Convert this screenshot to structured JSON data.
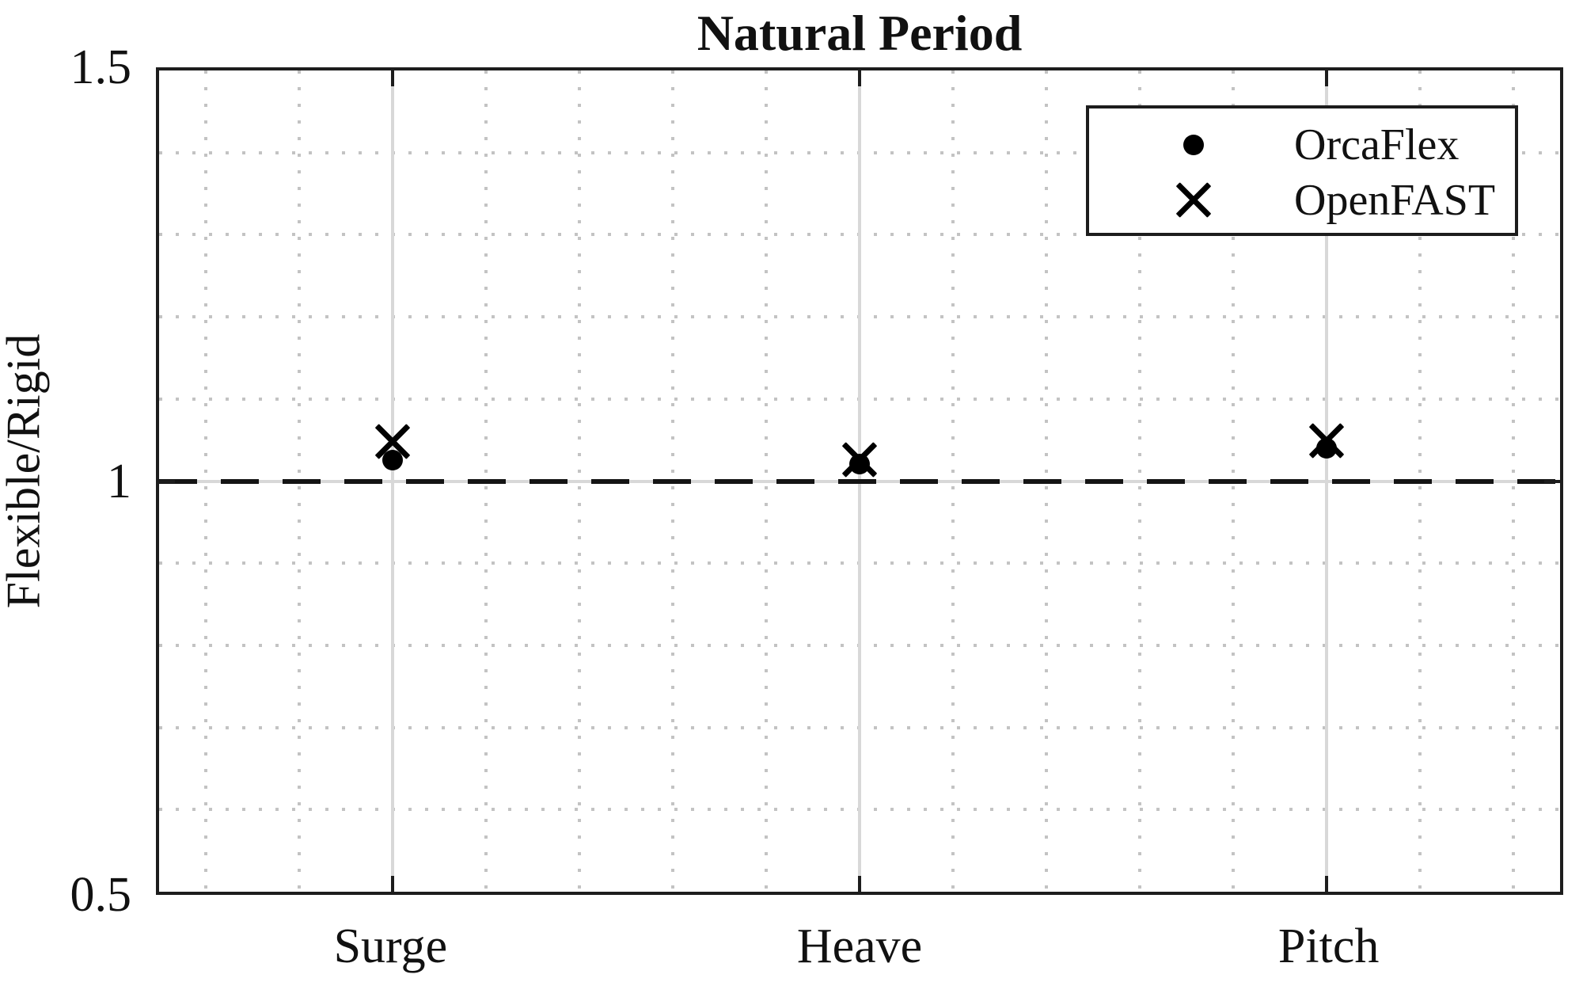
{
  "chart_data": {
    "type": "scatter",
    "title": "Natural Period",
    "xlabel": "",
    "ylabel": "Flexible/Rigid",
    "categories": [
      "Surge",
      "Heave",
      "Pitch"
    ],
    "category_x": [
      1,
      2,
      3
    ],
    "series": [
      {
        "name": "OrcaFlex",
        "marker": "filled-circle",
        "values": [
          1.026,
          1.021,
          1.04
        ]
      },
      {
        "name": "OpenFAST",
        "marker": "x-cross",
        "values": [
          1.048,
          1.026,
          1.049
        ]
      }
    ],
    "reference_line_y": 1.0,
    "reference_line_style": "black-dashed",
    "xlim": [
      0.5,
      3.5
    ],
    "ylim": [
      0.5,
      1.5
    ],
    "yticks": [
      0.5,
      1.0,
      1.5
    ],
    "ytick_labels": [
      "0.5",
      "1",
      "1.5"
    ],
    "major_gridlines_x": [
      1,
      2,
      3
    ],
    "major_gridlines_y": [
      1.0
    ],
    "minor_gridlines_x": [
      0.6,
      0.8,
      1.2,
      1.4,
      1.6,
      1.8,
      2.2,
      2.4,
      2.6,
      2.8,
      3.2,
      3.4
    ],
    "minor_gridlines_y": [
      0.6,
      0.7,
      0.8,
      0.9,
      1.1,
      1.2,
      1.3,
      1.4
    ],
    "grid": "on",
    "legend_position": "northeast"
  },
  "legend": {
    "entries": [
      {
        "label": "OrcaFlex",
        "marker": "filled-circle"
      },
      {
        "label": "OpenFAST",
        "marker": "x-cross"
      }
    ]
  },
  "colors": {
    "background": "#ffffff",
    "axis": "#1d1d1d",
    "marker": "#000000",
    "grid_major": "#d8d8d8",
    "grid_minor": "#c3c3c3",
    "reference_line": "#141414",
    "text": "#111111"
  }
}
